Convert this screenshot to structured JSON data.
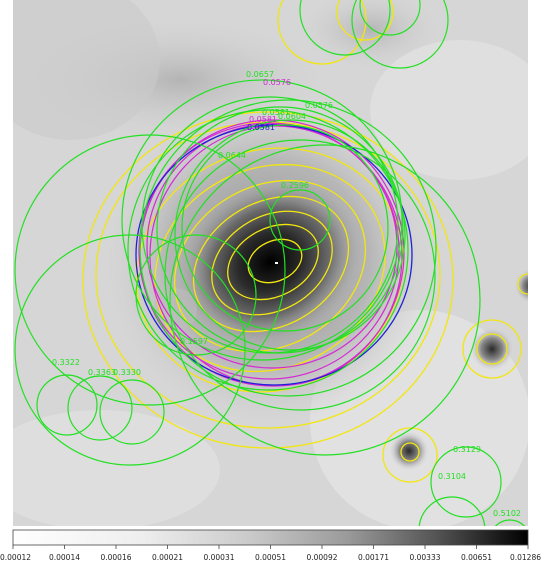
{
  "colors": {
    "green": "#22e022",
    "yellow": "#f2e60f",
    "blue": "#2020d8",
    "magenta": "#d42ad4"
  },
  "image": {
    "colormap": "grey-inverted",
    "colorbar_ticks": [
      "0.00012",
      "0.00014",
      "0.00016",
      "0.00021",
      "0.00031",
      "0.00051",
      "0.00092",
      "0.00171",
      "0.00333",
      "0.00651",
      "0.01286"
    ]
  },
  "labels": [
    {
      "id": "l1",
      "text": "0.0657",
      "color": "green"
    },
    {
      "id": "l2",
      "text": "0.0576",
      "color": "magenta"
    },
    {
      "id": "l3",
      "text": "0.0576",
      "color": "green"
    },
    {
      "id": "l4",
      "text": "0.0581",
      "color": "magenta"
    },
    {
      "id": "l5",
      "text": "0.0581",
      "color": "blue"
    },
    {
      "id": "l6",
      "text": "0.0581",
      "color": "green"
    },
    {
      "id": "l7",
      "text": "0.0604",
      "color": "green"
    },
    {
      "id": "l8",
      "text": "0.0644",
      "color": "green"
    },
    {
      "id": "l9",
      "text": "0.2596",
      "color": "green"
    },
    {
      "id": "l10",
      "text": "0.3322",
      "color": "green"
    },
    {
      "id": "l11",
      "text": "0.3363",
      "color": "green"
    },
    {
      "id": "l12",
      "text": "0.3330",
      "color": "green"
    },
    {
      "id": "l13",
      "text": "0.1597",
      "color": "green"
    },
    {
      "id": "l14",
      "text": "0.3129",
      "color": "green"
    },
    {
      "id": "l15",
      "text": "0.3104",
      "color": "green"
    },
    {
      "id": "l16",
      "text": "0.5102",
      "color": "green"
    }
  ]
}
